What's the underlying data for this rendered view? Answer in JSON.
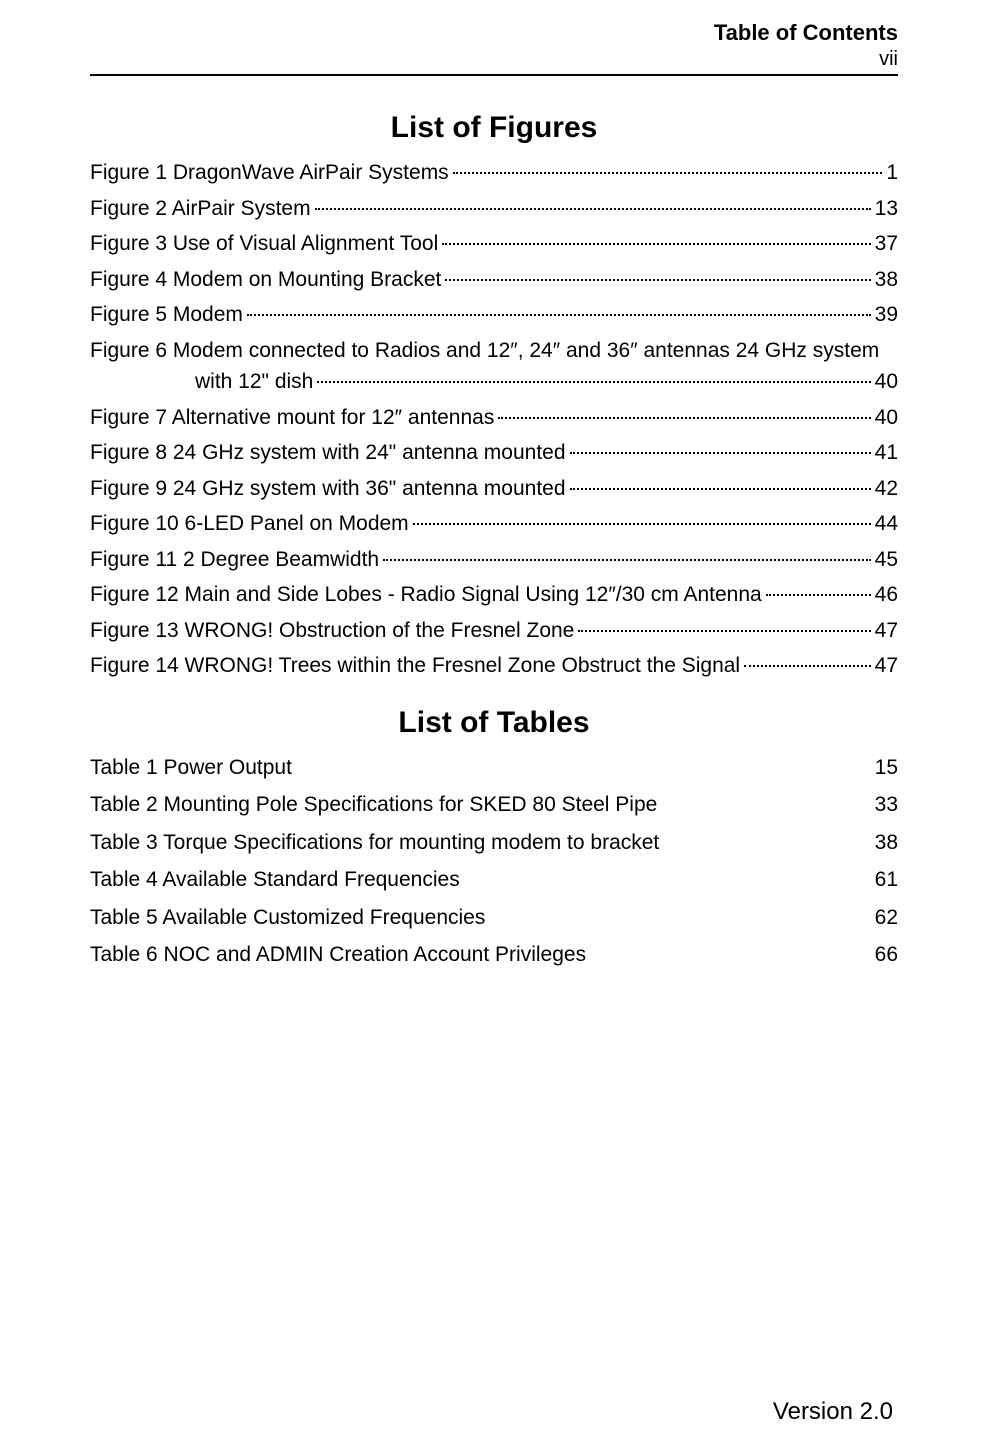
{
  "header": {
    "title": "Table of Contents",
    "pageNumber": "vii"
  },
  "figures": {
    "title": "List of Figures",
    "entries": [
      {
        "label": "Figure 1  DragonWave AirPair Systems",
        "page": "1"
      },
      {
        "label": "Figure 2  AirPair System",
        "page": "13"
      },
      {
        "label": "Figure 3 Use of Visual Alignment Tool",
        "page": "37"
      },
      {
        "label": "Figure 4 Modem on Mounting Bracket",
        "page": "38"
      },
      {
        "label": "Figure 5 Modem",
        "page": "39"
      },
      {
        "label_line1": "Figure 6 Modem connected to Radios and 12″, 24″ and 36″ antennas  24 GHz system",
        "label_line2": "with 12\" dish",
        "page": "40",
        "wrapped": true
      },
      {
        "label": "Figure 7 Alternative mount for 12″ antennas",
        "page": "40"
      },
      {
        "label": "Figure 8 24 GHz system with 24\" antenna mounted",
        "page": "41"
      },
      {
        "label": "Figure 9 24 GHz system with 36\" antenna mounted",
        "page": "42"
      },
      {
        "label": "Figure 10 6-LED Panel on Modem",
        "page": "44"
      },
      {
        "label": "Figure 11 2 Degree Beamwidth",
        "page": "45"
      },
      {
        "label": "Figure 12 Main and Side Lobes - Radio Signal Using 12″/30 cm Antenna",
        "page": "46"
      },
      {
        "label": "Figure 13 WRONG! Obstruction of the Fresnel Zone",
        "page": "47"
      },
      {
        "label": "Figure 14 WRONG! Trees within the Fresnel Zone Obstruct the Signal",
        "page": "47"
      }
    ]
  },
  "tables": {
    "title": "List of Tables",
    "entries": [
      {
        "label": "Table 1 Power Output",
        "page": "15"
      },
      {
        "label": "Table 2  Mounting Pole Specifications for SKED 80 Steel Pipe",
        "page": "33"
      },
      {
        "label": "Table 3  Torque Specifications for mounting modem to bracket",
        "page": "38"
      },
      {
        "label": "Table 4 Available Standard Frequencies",
        "page": "61"
      },
      {
        "label": "Table 5 Available Customized Frequencies",
        "page": "62"
      },
      {
        "label": "Table 6 NOC and ADMIN Creation Account Privileges",
        "page": "66"
      }
    ]
  },
  "footer": {
    "version": "Version 2.0"
  }
}
